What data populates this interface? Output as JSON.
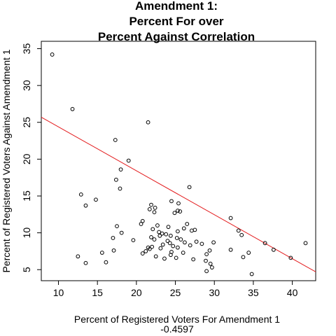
{
  "chart_data": {
    "type": "scatter",
    "title_lines": [
      "Amendment 1:",
      "Percent For over",
      "Percent Against Correlation"
    ],
    "xlabel": "Percent of Registered Voters For Amendment 1",
    "ylabel": "Percent of Registered Voters Against Amendment 1",
    "subtitle": "-0.4597",
    "xlim": [
      7.8,
      43.0
    ],
    "ylim": [
      3.5,
      36.0
    ],
    "x_ticks": [
      10,
      15,
      20,
      25,
      30,
      35,
      40
    ],
    "y_ticks": [
      5,
      10,
      15,
      20,
      25,
      30,
      35
    ],
    "grid": false,
    "point_color": "#000000",
    "regression_line": {
      "color": "#e31a1c",
      "x": [
        7.8,
        43.0
      ],
      "y": [
        25.7,
        4.7
      ]
    },
    "points": [
      [
        9.2,
        34.2
      ],
      [
        11.8,
        26.8
      ],
      [
        21.5,
        25.0
      ],
      [
        17.3,
        22.6
      ],
      [
        19.0,
        19.8
      ],
      [
        18.0,
        18.6
      ],
      [
        17.4,
        17.2
      ],
      [
        17.9,
        16.0
      ],
      [
        26.8,
        16.2
      ],
      [
        12.9,
        15.2
      ],
      [
        24.5,
        14.3
      ],
      [
        14.8,
        14.5
      ],
      [
        21.9,
        13.8
      ],
      [
        13.5,
        13.7
      ],
      [
        22.4,
        13.4
      ],
      [
        25.4,
        14.0
      ],
      [
        21.7,
        13.2
      ],
      [
        25.3,
        13.0
      ],
      [
        25.6,
        12.9
      ],
      [
        22.3,
        12.8
      ],
      [
        24.9,
        12.7
      ],
      [
        32.1,
        12.0
      ],
      [
        20.8,
        11.6
      ],
      [
        26.5,
        11.2
      ],
      [
        20.6,
        11.2
      ],
      [
        22.7,
        11.0
      ],
      [
        17.5,
        10.9
      ],
      [
        22.1,
        10.5
      ],
      [
        24.1,
        10.8
      ],
      [
        26.1,
        10.6
      ],
      [
        27.5,
        10.4
      ],
      [
        33.1,
        10.3
      ],
      [
        27.1,
        10.3
      ],
      [
        25.3,
        10.2
      ],
      [
        22.9,
        10.1
      ],
      [
        18.1,
        10.0
      ],
      [
        23.3,
        9.9
      ],
      [
        23.8,
        9.8
      ],
      [
        33.5,
        9.7
      ],
      [
        24.4,
        9.6
      ],
      [
        17.0,
        9.3
      ],
      [
        23.0,
        9.6
      ],
      [
        21.9,
        9.4
      ],
      [
        25.2,
        9.3
      ],
      [
        22.3,
        9.1
      ],
      [
        19.6,
        9.0
      ],
      [
        25.7,
        9.1
      ],
      [
        24.0,
        8.9
      ],
      [
        27.7,
        8.8
      ],
      [
        26.2,
        8.7
      ],
      [
        29.9,
        8.7
      ],
      [
        24.3,
        8.6
      ],
      [
        28.4,
        8.5
      ],
      [
        36.5,
        8.6
      ],
      [
        41.7,
        8.6
      ],
      [
        23.4,
        8.4
      ],
      [
        26.9,
        8.3
      ],
      [
        24.7,
        8.2
      ],
      [
        22.0,
        8.1
      ],
      [
        25.3,
        8.0
      ],
      [
        21.5,
        8.0
      ],
      [
        23.1,
        7.9
      ],
      [
        21.7,
        7.8
      ],
      [
        32.1,
        7.7
      ],
      [
        17.1,
        7.6
      ],
      [
        29.4,
        7.6
      ],
      [
        37.6,
        7.7
      ],
      [
        21.2,
        7.5
      ],
      [
        24.5,
        7.4
      ],
      [
        26.0,
        7.3
      ],
      [
        34.4,
        7.3
      ],
      [
        15.6,
        7.3
      ],
      [
        20.8,
        7.2
      ],
      [
        29.0,
        7.1
      ],
      [
        24.4,
        7.0
      ],
      [
        12.5,
        6.8
      ],
      [
        22.5,
        6.8
      ],
      [
        33.7,
        6.7
      ],
      [
        25.1,
        6.6
      ],
      [
        39.8,
        6.6
      ],
      [
        23.6,
        6.5
      ],
      [
        27.3,
        6.4
      ],
      [
        28.9,
        6.2
      ],
      [
        16.1,
        6.0
      ],
      [
        13.5,
        5.9
      ],
      [
        29.5,
        5.8
      ],
      [
        29.7,
        5.3
      ],
      [
        29.0,
        4.8
      ],
      [
        34.8,
        4.4
      ]
    ]
  }
}
